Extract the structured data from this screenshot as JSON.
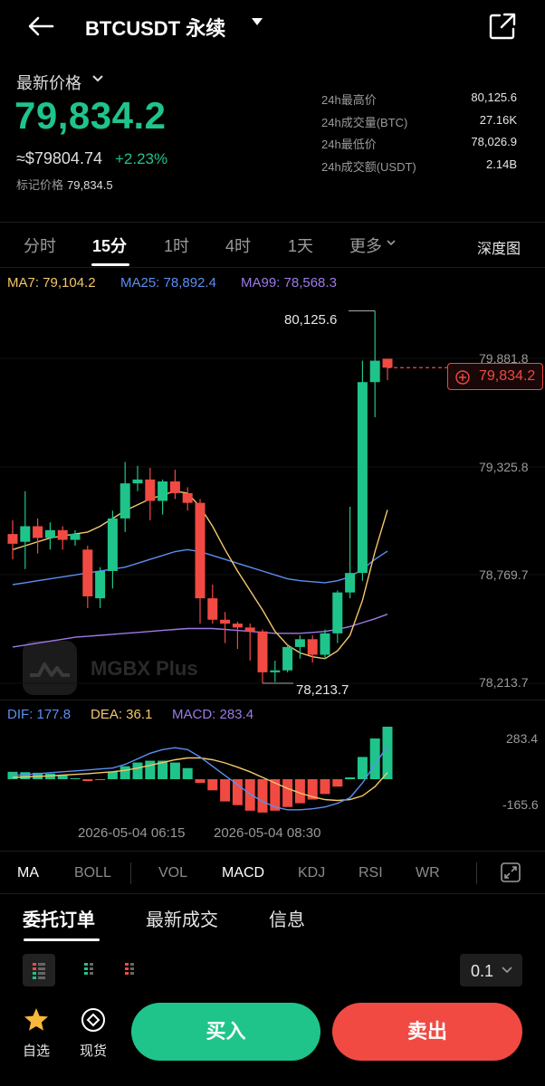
{
  "header": {
    "title": "BTCUSDT 永续",
    "back_icon": "arrow-left-icon",
    "share_icon": "external-link-icon"
  },
  "price": {
    "label": "最新价格",
    "last": "79,834.2",
    "usd": "≈$79804.74",
    "change": "+2.23%",
    "mark_label": "标记价格",
    "mark_value": "79,834.5"
  },
  "stats": [
    {
      "label": "24h最高价",
      "value": "80,125.6"
    },
    {
      "label": "24h成交量(BTC)",
      "value": "27.16K"
    },
    {
      "label": "24h最低价",
      "value": "78,026.9"
    },
    {
      "label": "24h成交额(USDT)",
      "value": "2.14B"
    }
  ],
  "intervals": [
    "分时",
    "15分",
    "1时",
    "4时",
    "1天",
    "更多"
  ],
  "active_interval": "15分",
  "depth_label": "深度图",
  "ma_legend": {
    "ma7": "MA7: 79,104.2",
    "ma25": "MA25: 78,892.4",
    "ma99": "MA99: 78,568.3"
  },
  "chart_data": {
    "type": "candlestick",
    "interval": "15m",
    "price_axis": [
      "79,881.8",
      "79,325.8",
      "78,769.7",
      "78,213.7"
    ],
    "high_marker": "80,125.6",
    "low_marker": "78,213.7",
    "last_price_tag": "79,834.2",
    "time_labels": [
      "2026-05-04 06:15",
      "2026-05-04 08:30"
    ],
    "candles": [
      {
        "o": 78980,
        "h": 79050,
        "l": 78850,
        "c": 78930
      },
      {
        "o": 78940,
        "h": 79200,
        "l": 78800,
        "c": 79020
      },
      {
        "o": 79020,
        "h": 79060,
        "l": 78880,
        "c": 78960
      },
      {
        "o": 78960,
        "h": 79040,
        "l": 78900,
        "c": 79000
      },
      {
        "o": 79000,
        "h": 79020,
        "l": 78900,
        "c": 78950
      },
      {
        "o": 78950,
        "h": 79000,
        "l": 78920,
        "c": 78980
      },
      {
        "o": 78900,
        "h": 78920,
        "l": 78600,
        "c": 78660
      },
      {
        "o": 78650,
        "h": 78810,
        "l": 78600,
        "c": 78790
      },
      {
        "o": 78790,
        "h": 79100,
        "l": 78700,
        "c": 79060
      },
      {
        "o": 79060,
        "h": 79350,
        "l": 78990,
        "c": 79240
      },
      {
        "o": 79240,
        "h": 79330,
        "l": 79200,
        "c": 79260
      },
      {
        "o": 79260,
        "h": 79320,
        "l": 79050,
        "c": 79150
      },
      {
        "o": 79150,
        "h": 79260,
        "l": 79080,
        "c": 79250
      },
      {
        "o": 79250,
        "h": 79310,
        "l": 79160,
        "c": 79190
      },
      {
        "o": 79190,
        "h": 79220,
        "l": 79100,
        "c": 79140
      },
      {
        "o": 79140,
        "h": 79160,
        "l": 78520,
        "c": 78650
      },
      {
        "o": 78650,
        "h": 78720,
        "l": 78520,
        "c": 78540
      },
      {
        "o": 78540,
        "h": 78580,
        "l": 78420,
        "c": 78520
      },
      {
        "o": 78520,
        "h": 78530,
        "l": 78390,
        "c": 78500
      },
      {
        "o": 78500,
        "h": 78520,
        "l": 78330,
        "c": 78480
      },
      {
        "o": 78480,
        "h": 78490,
        "l": 78213.7,
        "c": 78270
      },
      {
        "o": 78270,
        "h": 78330,
        "l": 78220,
        "c": 78280
      },
      {
        "o": 78280,
        "h": 78410,
        "l": 78270,
        "c": 78400
      },
      {
        "o": 78400,
        "h": 78460,
        "l": 78340,
        "c": 78440
      },
      {
        "o": 78440,
        "h": 78460,
        "l": 78320,
        "c": 78360
      },
      {
        "o": 78360,
        "h": 78490,
        "l": 78340,
        "c": 78470
      },
      {
        "o": 78470,
        "h": 78690,
        "l": 78420,
        "c": 78680
      },
      {
        "o": 78680,
        "h": 79120,
        "l": 78650,
        "c": 78780
      },
      {
        "o": 78780,
        "h": 79870,
        "l": 78740,
        "c": 79760
      },
      {
        "o": 79760,
        "h": 80125.6,
        "l": 79580,
        "c": 79870
      },
      {
        "o": 79880,
        "h": 79880,
        "l": 79770,
        "c": 79834.2
      }
    ],
    "ma7": [
      78900,
      78920,
      78940,
      78960,
      78970,
      78980,
      78990,
      79020,
      79060,
      79100,
      79130,
      79160,
      79180,
      79200,
      79190,
      79120,
      79020,
      78900,
      78790,
      78690,
      78590,
      78480,
      78410,
      78370,
      78350,
      78340,
      78380,
      78460,
      78640,
      78890,
      79104.2
    ],
    "ma25": [
      78720,
      78730,
      78740,
      78750,
      78760,
      78770,
      78780,
      78790,
      78800,
      78810,
      78830,
      78850,
      78870,
      78890,
      78900,
      78890,
      78870,
      78850,
      78830,
      78810,
      78790,
      78770,
      78750,
      78740,
      78735,
      78730,
      78740,
      78760,
      78800,
      78850,
      78892.4
    ],
    "ma99": [
      78400,
      78410,
      78420,
      78430,
      78440,
      78450,
      78455,
      78460,
      78465,
      78470,
      78475,
      78480,
      78485,
      78490,
      78495,
      78495,
      78495,
      78490,
      78485,
      78480,
      78475,
      78470,
      78470,
      78470,
      78475,
      78480,
      78490,
      78505,
      78525,
      78545,
      78568.3
    ]
  },
  "macd_legend": {
    "dif": "DIF: 177.8",
    "dea": "DEA: 36.1",
    "macd": "MACD: 283.4"
  },
  "macd_data": {
    "axis": [
      "283.4",
      "-165.6"
    ],
    "hist": [
      40,
      38,
      35,
      30,
      20,
      5,
      -10,
      -5,
      40,
      70,
      90,
      100,
      100,
      90,
      60,
      -20,
      -60,
      -120,
      -140,
      -170,
      -180,
      -170,
      -150,
      -130,
      -110,
      -80,
      -40,
      10,
      120,
      220,
      283.4
    ],
    "dif": [
      20,
      25,
      30,
      35,
      40,
      45,
      50,
      55,
      60,
      80,
      110,
      140,
      160,
      170,
      160,
      120,
      70,
      20,
      -30,
      -80,
      -120,
      -150,
      -165,
      -165,
      -160,
      -150,
      -130,
      -100,
      -20,
      80,
      177.8
    ],
    "dea": [
      10,
      12,
      15,
      18,
      22,
      26,
      30,
      35,
      40,
      48,
      60,
      75,
      90,
      105,
      115,
      115,
      105,
      88,
      65,
      40,
      10,
      -20,
      -50,
      -75,
      -95,
      -110,
      -115,
      -110,
      -90,
      -40,
      36.1
    ]
  },
  "indicators": [
    "MA",
    "BOLL",
    "VOL",
    "MACD",
    "KDJ",
    "RSI",
    "WR"
  ],
  "active_main": "MA",
  "active_sub": "MACD",
  "order_tabs": [
    "委托订单",
    "最新成交",
    "信息"
  ],
  "active_order_tab": "委托订单",
  "depth_precision": "0.1",
  "watermark": "MGBX Plus",
  "bottom_nav": [
    {
      "label": "自选",
      "icon": "star-icon"
    },
    {
      "label": "现货",
      "icon": "spot-icon"
    }
  ],
  "buy_label": "买入",
  "sell_label": "卖出",
  "colors": {
    "up": "#1fc48a",
    "down": "#f04a43",
    "ma7": "#f4c76b",
    "ma25": "#5b8ff1",
    "ma99": "#9d7ae8"
  }
}
